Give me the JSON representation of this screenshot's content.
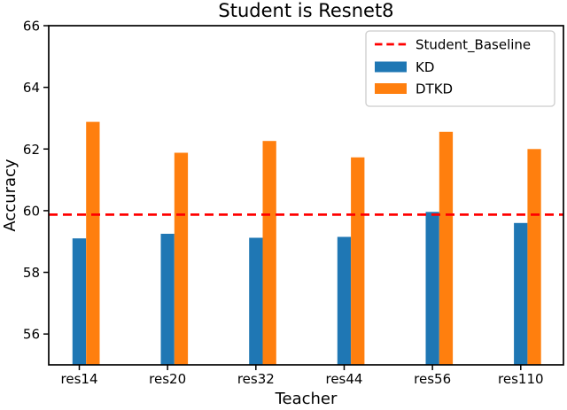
{
  "chart_data": {
    "type": "bar",
    "title": "Student is Resnet8",
    "xlabel": "Teacher",
    "ylabel": "Accuracy",
    "categories": [
      "res14",
      "res20",
      "res32",
      "res44",
      "res56",
      "res110"
    ],
    "series": [
      {
        "name": "KD",
        "color": "#1f77b4",
        "values": [
          59.1,
          59.25,
          59.12,
          59.15,
          59.96,
          59.6
        ]
      },
      {
        "name": "DTKD",
        "color": "#ff7f0e",
        "values": [
          62.88,
          61.88,
          62.26,
          61.73,
          62.56,
          62.0
        ]
      }
    ],
    "baseline": {
      "label": "Student_Baseline",
      "value": 59.87,
      "color": "#ff0000",
      "style": "dashed"
    },
    "ylim": [
      55,
      66
    ],
    "yticks": [
      56,
      58,
      60,
      62,
      64,
      66
    ],
    "legend_position": "upper right",
    "grid": false,
    "axis_color": "#000000"
  }
}
